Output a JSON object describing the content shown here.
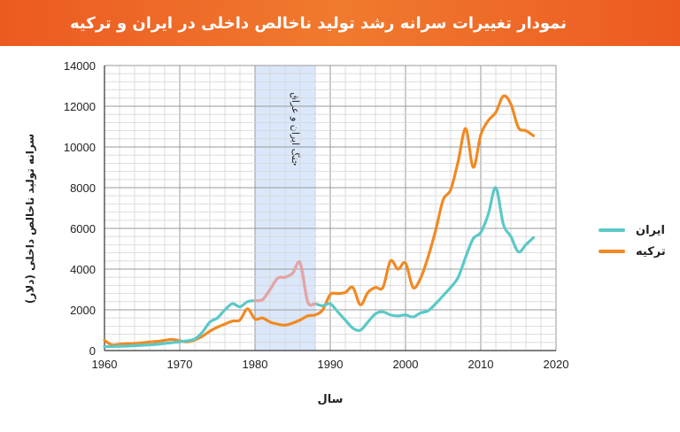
{
  "title": "نمودار تغییرات سرانه رشد تولید ناخالص داخلی در ایران و ترکیه",
  "chart_data": {
    "type": "line",
    "title": "نمودار تغییرات سرانه رشد تولید ناخالص داخلی در ایران و ترکیه",
    "xlabel": "سال",
    "ylabel": "سرانه تولید ناخالص داخلی (دلار)",
    "xlim": [
      1960,
      2020
    ],
    "ylim": [
      0,
      14000
    ],
    "x_ticks": [
      "1960",
      "1970",
      "1980",
      "1990",
      "2000",
      "2010",
      "2020"
    ],
    "y_ticks": [
      "0",
      "2000",
      "4000",
      "6000",
      "8000",
      "10000",
      "12000",
      "14000"
    ],
    "grid": true,
    "legend_position": "right",
    "annotation": {
      "label": "جنگ ایران و عراق",
      "x_range": [
        1980,
        1988
      ],
      "color": "#dbe8fb"
    },
    "series": [
      {
        "name": "ایران",
        "color": "#5cc8c8",
        "war_color": "#e8a3a3",
        "x": [
          1960,
          1961,
          1962,
          1963,
          1964,
          1965,
          1966,
          1967,
          1968,
          1969,
          1970,
          1971,
          1972,
          1973,
          1974,
          1975,
          1976,
          1977,
          1978,
          1979,
          1980,
          1981,
          1982,
          1983,
          1984,
          1985,
          1986,
          1987,
          1988,
          1989,
          1990,
          1991,
          1992,
          1993,
          1994,
          1995,
          1996,
          1997,
          1998,
          1999,
          2000,
          2001,
          2002,
          2003,
          2004,
          2005,
          2006,
          2007,
          2008,
          2009,
          2010,
          2011,
          2012,
          2013,
          2014,
          2015,
          2016,
          2017
        ],
        "y": [
          190,
          200,
          210,
          220,
          240,
          260,
          280,
          310,
          350,
          390,
          430,
          480,
          570,
          900,
          1400,
          1600,
          2000,
          2300,
          2150,
          2400,
          2450,
          2500,
          3000,
          3550,
          3600,
          3800,
          4300,
          2400,
          2300,
          2200,
          2300,
          1900,
          1500,
          1100,
          1000,
          1400,
          1800,
          1900,
          1750,
          1700,
          1750,
          1650,
          1850,
          1950,
          2300,
          2700,
          3100,
          3600,
          4600,
          5500,
          5800,
          6700,
          8000,
          6200,
          5600,
          4850,
          5200,
          5550
        ]
      },
      {
        "name": "ترکیه",
        "color": "#f08a24",
        "x": [
          1960,
          1961,
          1962,
          1963,
          1964,
          1965,
          1966,
          1967,
          1968,
          1969,
          1970,
          1971,
          1972,
          1973,
          1974,
          1975,
          1976,
          1977,
          1978,
          1979,
          1980,
          1981,
          1982,
          1983,
          1984,
          1985,
          1986,
          1987,
          1988,
          1989,
          1990,
          1991,
          1992,
          1993,
          1994,
          1995,
          1996,
          1997,
          1998,
          1999,
          2000,
          2001,
          2002,
          2003,
          2004,
          2005,
          2006,
          2007,
          2008,
          2009,
          2010,
          2011,
          2012,
          2013,
          2014,
          2015,
          2016,
          2017
        ],
        "y": [
          500,
          280,
          310,
          340,
          350,
          380,
          420,
          450,
          500,
          550,
          480,
          430,
          520,
          700,
          950,
          1150,
          1300,
          1450,
          1500,
          2050,
          1550,
          1600,
          1400,
          1300,
          1250,
          1350,
          1500,
          1700,
          1750,
          2000,
          2750,
          2800,
          2850,
          3100,
          2250,
          2850,
          3100,
          3100,
          4400,
          4000,
          4300,
          3100,
          3550,
          4600,
          5900,
          7400,
          7900,
          9300,
          10900,
          9000,
          10600,
          11300,
          11700,
          12500,
          12100,
          10950,
          10800,
          10550
        ]
      }
    ]
  }
}
